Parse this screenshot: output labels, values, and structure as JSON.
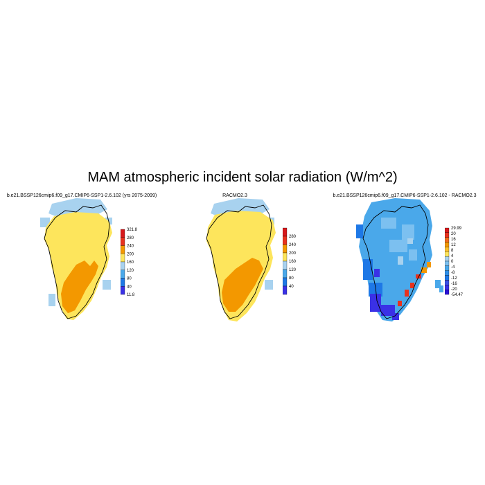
{
  "title": "MAM atmospheric incident solar radiation (W/m^2)",
  "panels": [
    {
      "id": "model",
      "title": "b.e21.BSSP126cmip6.f09_g17.CMIP6-SSP1-2.6.102 (yrs 2075-2099)",
      "colorbar": {
        "labels": [
          "321.8",
          "280",
          "240",
          "200",
          "160",
          "120",
          "80",
          "40",
          "11.8"
        ],
        "colors": [
          "#d7191c",
          "#e8321e",
          "#f39800",
          "#fde55c",
          "#a8d2ef",
          "#4aa8ea",
          "#1e78e6",
          "#3a31e6"
        ]
      }
    },
    {
      "id": "obs",
      "title": "RACMO2.3",
      "colorbar": {
        "labels": [
          "280",
          "240",
          "200",
          "160",
          "120",
          "80",
          "40"
        ],
        "colors": [
          "#d7191c",
          "#e8321e",
          "#f39800",
          "#fde55c",
          "#a8d2ef",
          "#4aa8ea",
          "#1e78e6",
          "#3a31e6"
        ]
      }
    },
    {
      "id": "diff",
      "title": "b.e21.BSSP126cmip6.f09_g17.CMIP6-SSP1-2.6.102 - RACMO2.3",
      "colorbar": {
        "labels": [
          "29.99",
          "20",
          "16",
          "12",
          "8",
          "4",
          "0",
          "-4",
          "-8",
          "-12",
          "-16",
          "-20",
          "-54.47"
        ],
        "colors": [
          "#d7191c",
          "#e8321e",
          "#f06a1e",
          "#f39800",
          "#fbc02d",
          "#fde55c",
          "#a8d2ef",
          "#7cc0f0",
          "#4aa8ea",
          "#2f8fe8",
          "#1e78e6",
          "#3a50e6",
          "#3a31e6",
          "#2a10d8"
        ]
      }
    }
  ]
}
